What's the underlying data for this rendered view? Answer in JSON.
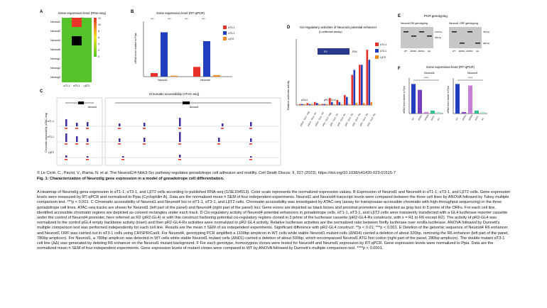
{
  "figure": {
    "panel_a": {
      "letter": "A",
      "title": "Gene expression level (RNA-seq)",
      "rows": [
        "Neurod1",
        "Neurod2",
        "Neurod4",
        "Neurod6",
        "Neurog1",
        "Neurog2",
        "Neurog3"
      ],
      "cols": [
        "αT1-1",
        "αT3-1",
        "LβT2"
      ],
      "scale_ticks": [
        "12",
        "10",
        "8",
        "6",
        "4",
        "2",
        "0"
      ]
    },
    "panel_b": {
      "letter": "B",
      "title": "Gene expression level (RT-qPCR)",
      "ylabel": "mRNA level relative to Ppia",
      "groups": [
        "Neurod1",
        "Neurod4"
      ],
      "legend": [
        "αT1-1",
        "αT3-1",
        "LβT2"
      ],
      "sig": [
        "***",
        "***",
        "***",
        "***"
      ]
    },
    "panel_c": {
      "letter": "C",
      "title": "Chromatin accessibility (ATAC-seq)",
      "ylabel": "Chromatin accessibility (ATAC-seq)",
      "tracks": [
        "αT1-1",
        "αT3-1",
        "LβT2"
      ],
      "gene_left": "Neurod1",
      "gene_right": "Neurod4"
    },
    "panel_d": {
      "letter": "D",
      "title": "Cis-regulatory activities of Neurod4 potential enhancer",
      "subtitle": "(Luciferase assay)",
      "ylabel": "Relative luciferase activity",
      "xlabels": [
        "pGL4 - GL4 - neg",
        "pGL4 - GL4 - R1",
        "pGL4 - GL4 - R2",
        "pR2 - GL4 - neg",
        "pR2 - GL4 - R1",
        "pR2 - GL4 - R2",
        "pR2 - GL4 - R3",
        "pR2 - GL4 - R4",
        "pR2 - GL4 - R5",
        "pR2 - GL4 - R6"
      ],
      "group_labels": [
        "pGL4",
        "pR2 - GL4"
      ],
      "legend": [
        "αT1-1",
        "αT3-1",
        "LβT2"
      ],
      "inset_label": "R2",
      "inset_label2": "R16"
    },
    "panel_e": {
      "letter": "E",
      "title": "PCR genotyping",
      "sub_left": "Neurod4 R6 genotyping",
      "sub_right": "Neurod1 ORF genotyping",
      "lanes_left": [
        "WT",
        "ΔR6D1",
        "ΔR6D4",
        "ΔΔ"
      ],
      "lanes_right": [
        "WT",
        "ΔR6D1",
        "ΔR6D4",
        "ΔΔ"
      ],
      "bp_left": [
        "1100 bp",
        "780 bp"
      ],
      "bp_right": [
        "780 bp",
        "280 bp"
      ]
    },
    "panel_f": {
      "letter": "F",
      "title": "Gene expression level (RT-qPCR)",
      "left_title": "Neurod4",
      "right_title": "Neurod1",
      "ylabel": "mRNA level relative to Ppia",
      "xlabels": [
        "WT",
        "ΔR6D1",
        "ΔR6D4",
        "ΔND1",
        "ΔΔ"
      ],
      "sig": [
        "****",
        "****"
      ]
    }
  },
  "chart_data": [
    {
      "type": "heatmap",
      "title": "Gene expression level (RNA-seq)",
      "rows": [
        "Neurod1",
        "Neurod2",
        "Neurod4",
        "Neurod6",
        "Neurog1",
        "Neurog2",
        "Neurog3"
      ],
      "cols": [
        "αT1-1",
        "αT3-1",
        "LβT2"
      ],
      "values": [
        [
          0,
          12,
          0
        ],
        [
          0,
          0,
          0
        ],
        [
          0,
          0,
          0
        ],
        [
          0,
          0,
          0
        ],
        [
          0,
          0,
          0
        ],
        [
          0,
          0,
          0
        ],
        [
          0,
          0,
          0
        ]
      ],
      "note_cells": [
        {
          "row": "Neurod1",
          "col": "αT3-1",
          "color": "#e83b2a"
        },
        {
          "row": "Neurod4",
          "col": "αT3-1",
          "color": "#000000"
        }
      ],
      "scale_range": [
        0,
        12
      ]
    },
    {
      "type": "bar",
      "title": "Gene expression level (RT-qPCR)",
      "categories": [
        "Neurod1",
        "Neurod4"
      ],
      "series": [
        {
          "name": "αT1-1",
          "values": [
            0.2,
            0.55
          ],
          "color": "#e8302a"
        },
        {
          "name": "αT3-1",
          "values": [
            2.5,
            2.0
          ],
          "color": "#1f3fbf"
        },
        {
          "name": "LβT2",
          "values": [
            0.05,
            0.08
          ],
          "color": "#f28a21"
        }
      ],
      "ylim": [
        0,
        3
      ],
      "ylabel": "mRNA level relative to Ppia"
    },
    {
      "type": "bar",
      "title": "Cis-regulatory activities of Neurod4 potential enhancer",
      "categories": [
        "pGL4-neg",
        "pGL4-R1",
        "pGL4-R2",
        "pR2-neg",
        "pR2-R1",
        "pR2-R2",
        "pR2-R3",
        "pR2-R4",
        "pR2-R5",
        "pR2-R6"
      ],
      "series": [
        {
          "name": "αT1-1",
          "values": [
            1,
            2,
            3,
            1,
            7,
            5,
            10,
            30,
            40,
            55
          ],
          "color": "#e8302a"
        },
        {
          "name": "αT3-1",
          "values": [
            1,
            1,
            2,
            1,
            3,
            3,
            8,
            35,
            40,
            45
          ],
          "color": "#1f3fbf"
        },
        {
          "name": "LβT2",
          "values": [
            1,
            1,
            1,
            1,
            1,
            1,
            1,
            2,
            2,
            3
          ],
          "color": "#f28a21"
        }
      ],
      "ylim": [
        0,
        60
      ],
      "ylabel": "Relative luciferase activity"
    },
    {
      "type": "bar",
      "title": "Neurod4",
      "categories": [
        "WT",
        "ΔR6D1",
        "ΔR6D4",
        "ΔND1",
        "ΔΔ"
      ],
      "values": [
        1.0,
        0.8,
        0.05,
        0.1,
        0.05
      ],
      "colors": [
        "#1f3fbf",
        "#7a3fbf",
        "#c77fd6",
        "#2fbf8f",
        "#a8e0c0"
      ],
      "ylim": [
        0,
        1.2
      ]
    },
    {
      "type": "bar",
      "title": "Neurod1",
      "categories": [
        "WT",
        "ΔR6D1",
        "ΔR6D4",
        "ΔND1",
        "ΔΔ"
      ],
      "values": [
        1.0,
        0.05,
        0.95,
        0.1,
        0.05
      ],
      "colors": [
        "#1f3fbf",
        "#7a3fbf",
        "#c77fd6",
        "#2fbf8f",
        "#a8e0c0"
      ],
      "ylim": [
        0,
        1.2
      ]
    }
  ],
  "caption": {
    "credit": "© Le Ciclé, C., Pacini, V., Rama, N. et al. The Neurod1/4-Ntrk3-Src pathway regulates gonadotrope cell adhesion and motility. Cell Death Discov. 9, 327 (2023). https://doi.org/10.1038/s41420-023-01615-7",
    "figtitle": "Fig. 1: Characterization of Neurod/g gene expression in a model of gonadotrope cell differentiation.",
    "legend": "A Heatmap of Neurod/g gene expression in αT1-1, αT3-1, and LβT2 cells according to published RNA-seq (GSE104513). Color scale represents the normalized expression values. B Expression of Neurod1 and Neurod4 in αT1-1, αT3-1, and LβT2 cells. Gene expression levels were measured by RT-qPCR and normalized to Ppia (Cyclophilin A). Data are the normalized mean ± SEM of four independent experiments. Neurod1 and Neurod4 transcript levels were compared between the three cell lines by ANOVA followed by Tukey multiple comparison test. ***p < 0.001. C Chromatin accessibility of Neurod1 and Neurod4 loci in αT1-1, αT3-1, and LβT2 cells. Chromatin accessibility was investigated by ATAC-seq (assay for transposase-accessible chromatin with high-throughput sequencing) in the three gonadotrope cell lines. ATAC-seq tracks are shown for Neurod1 (left part of the panel) and Neurod4 (right part of the panel) loci. Gene exons are depicted as black boxes and proximal promoters are depicted as gray box in 5 prime of the ORFs. For each cell line, identified accessible chromatin regions are depicted as colored rectangles under each track. D Cis-regulatory activity of Neurod4 potential enhancers in gonadotrope cells. αT1-1, αT3-1, and LβT2 cells were transiently transfected with a GL4 luciferase reporter cassette under the control of Neurod4 promoter, here referred as R2 (pR2-GL4) or with this construct harboring potential cis-regulatory regions cloned in 3 prime of the luciferase cassette (pR2-GL4-Rx constructs, with x = R1 to R6 except R2). The activity of pR2-GL4 was normalized to the control pGL4 empty backbone activity (inset) and then pR2-GL4-Rx activities were normalized to pR2-GL4 activity. Relative luciferase activities are the normalized ratio between firefly luciferase over renilla luciferase. ANOVA followed by Dunnett's multiple comparison test was performed independently for each cell line. Results are the mean ± SEM of six independent experiments. Significant difference with pR2-GL4 construct: **p < 0.01; ***p < 0.001. E Deletion of the genomic sequence of Neurod4 R6 enhancer and Neurod1 ORF was carried out in αT3-1 cells using CRISPR/Cas9. For Neurod4, genotyping PCR amplified a 1100bp amplicon in WT cells while stable Neurod1 mutant cells (ΔND4) carried a deletion of about 320bp, removing the R6 enhancer (left part of the panel, 780bp amplicon). For Neurod1, a 780bp amplicon was detected in WT cells while stable Neurod1 mutant cells (ΔND1) carried a deletion of about 500bp, which encompassed Neurod1 ATG first codon (right part of the panel, 280bp amplicon). The double mutant αT3-1 cell line (ΔΔ) was generated by deleting R6 enhancer on the Neurod1 mutant background. F For each genotype, homozygous clones were tested for Neurod4 and Neurod1 expression by RT-qPCR. Gene expression levels were normalized to Ppia. Data are the normalized mean ± SEM of four independent experiments. Gene expression levels of mutant clones were compared to WT by ANOVA followed by Dunnett's multiple comparison test. ****p < 0.0001."
  }
}
